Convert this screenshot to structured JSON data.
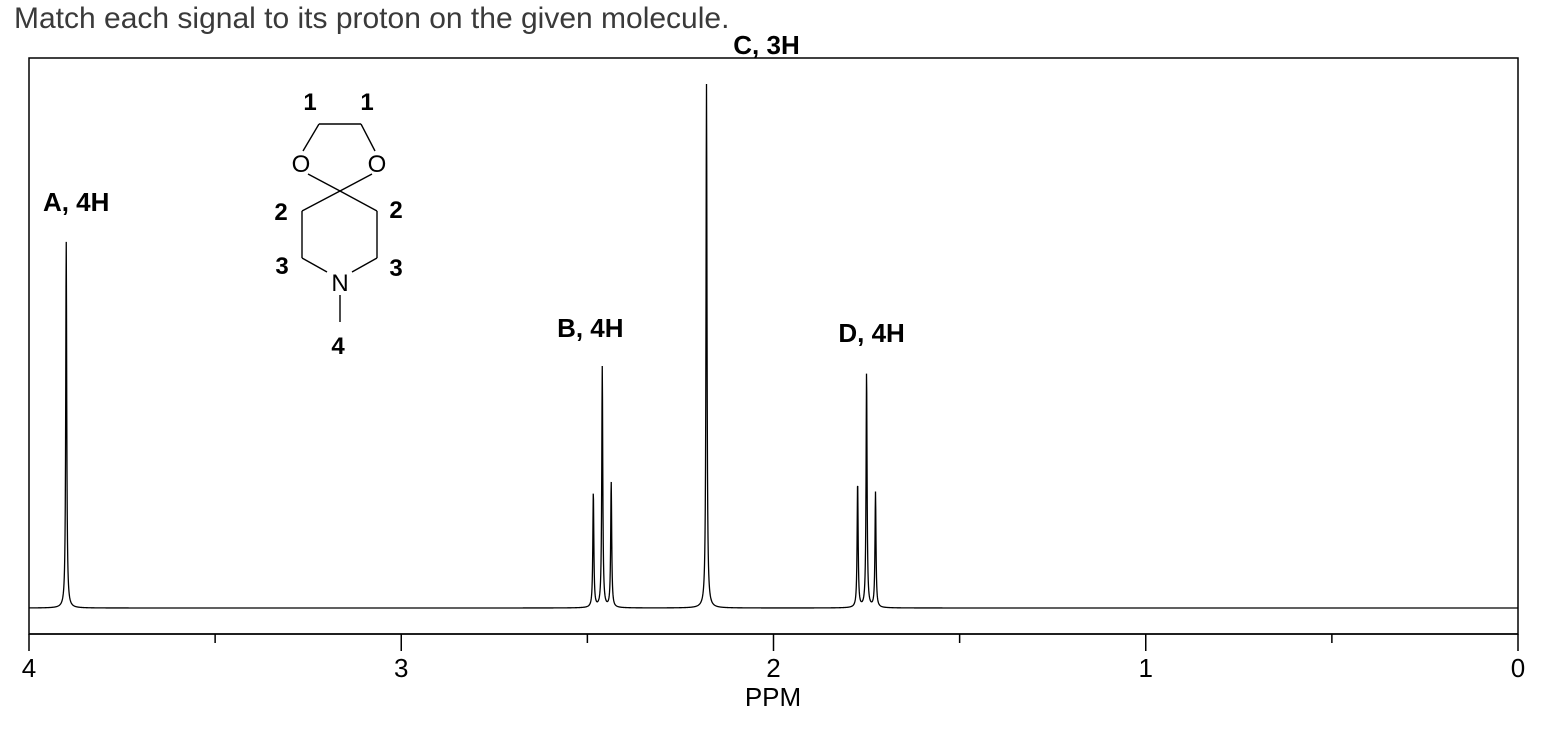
{
  "question": "Match each signal to its proton on the given molecule.",
  "chart_data": {
    "type": "line",
    "title": "",
    "xlabel": "PPM",
    "ylabel": "",
    "xlim": [
      4,
      0
    ],
    "x_direction": "reversed",
    "ticks_major": [
      4,
      3,
      2,
      1,
      0
    ],
    "tick_labels": [
      "4",
      "3",
      "2",
      "1",
      "0"
    ],
    "ticks_minor": [
      3.5,
      2.5,
      1.5,
      0.5
    ],
    "grid": false,
    "peaks": [
      {
        "label": "A, 4H",
        "shift": 3.9,
        "multiplicity": "singlet",
        "lines": [
          {
            "ppm": 3.9,
            "height": 0.7
          }
        ]
      },
      {
        "label": "B, 4H",
        "shift": 2.46,
        "multiplicity": "triplet",
        "lines": [
          {
            "ppm": 2.484,
            "height": 0.22
          },
          {
            "ppm": 2.46,
            "height": 0.46
          },
          {
            "ppm": 2.436,
            "height": 0.24
          }
        ]
      },
      {
        "label": "C, 3H",
        "shift": 2.18,
        "multiplicity": "singlet",
        "lines": [
          {
            "ppm": 2.18,
            "height": 1.0
          }
        ]
      },
      {
        "label": "D, 4H",
        "shift": 1.75,
        "multiplicity": "triplet",
        "lines": [
          {
            "ppm": 1.774,
            "height": 0.24
          },
          {
            "ppm": 1.75,
            "height": 0.45
          },
          {
            "ppm": 1.726,
            "height": 0.22
          }
        ]
      }
    ]
  },
  "molecule": {
    "atoms": {
      "o_left": "O",
      "o_right": "O",
      "n": "N"
    },
    "numbers": {
      "c1_left": "1",
      "c1_right": "1",
      "c2_left": "2",
      "c2_right": "2",
      "c3_left": "3",
      "c3_right": "3",
      "methyl": "4"
    }
  }
}
